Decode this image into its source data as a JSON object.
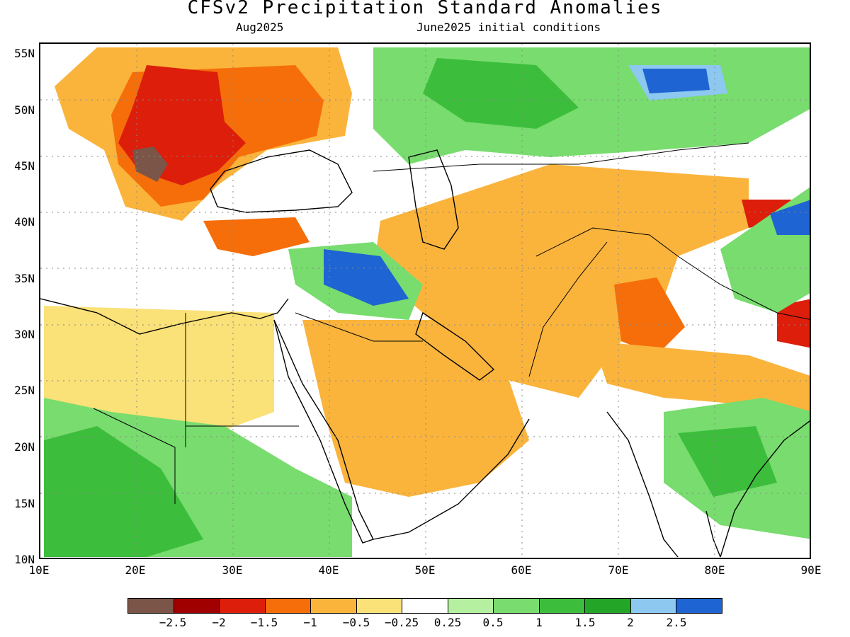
{
  "title": "CFSv2 Precipitation Standard Anomalies",
  "subtitle_left": "Aug2025",
  "subtitle_right": "June2025 initial conditions",
  "lat_labels": [
    "55N",
    "50N",
    "45N",
    "40N",
    "35N",
    "30N",
    "25N",
    "20N",
    "15N",
    "10N"
  ],
  "lon_labels": [
    "10E",
    "20E",
    "30E",
    "40E",
    "50E",
    "60E",
    "70E",
    "80E",
    "90E"
  ],
  "extent": {
    "lon_min": 10,
    "lon_max": 90,
    "lat_min": 10,
    "lat_max": 56
  },
  "legend": {
    "colors": [
      "#7a5548",
      "#a00000",
      "#dc1e0a",
      "#f56e0a",
      "#fab43c",
      "#fae178",
      "#ffffff",
      "#b4f0a0",
      "#78dc6e",
      "#3cbe3c",
      "#23a528",
      "#8cc8f0",
      "#1e64d2"
    ],
    "labels": [
      "−2.5",
      "−2",
      "−1.5",
      "−1",
      "−0.5",
      "−0.25",
      "0.25",
      "0.5",
      "1",
      "1.5",
      "2",
      "2.5"
    ]
  }
}
